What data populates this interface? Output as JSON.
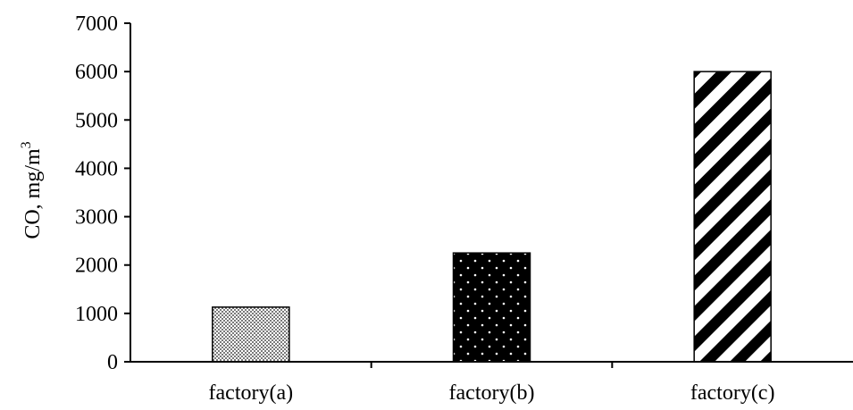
{
  "chart_data": {
    "type": "bar",
    "title": "",
    "xlabel": "",
    "ylabel": "CO, mg/m",
    "ylabel_superscript": "3",
    "categories": [
      "factory(a)",
      "factory(b)",
      "factory(c)"
    ],
    "values": [
      1130,
      2250,
      6000
    ],
    "ylim": [
      0,
      7000
    ],
    "yticks": [
      "0",
      "1000",
      "2000",
      "3000",
      "4000",
      "5000",
      "6000",
      "7000"
    ],
    "grid": false,
    "legend": "none",
    "patterns": [
      "checker-gray",
      "dots-on-black",
      "diagonal-stripes"
    ],
    "colors": {
      "ink": "#000000",
      "checker": "#8a8a8a",
      "background": "#ffffff"
    }
  }
}
